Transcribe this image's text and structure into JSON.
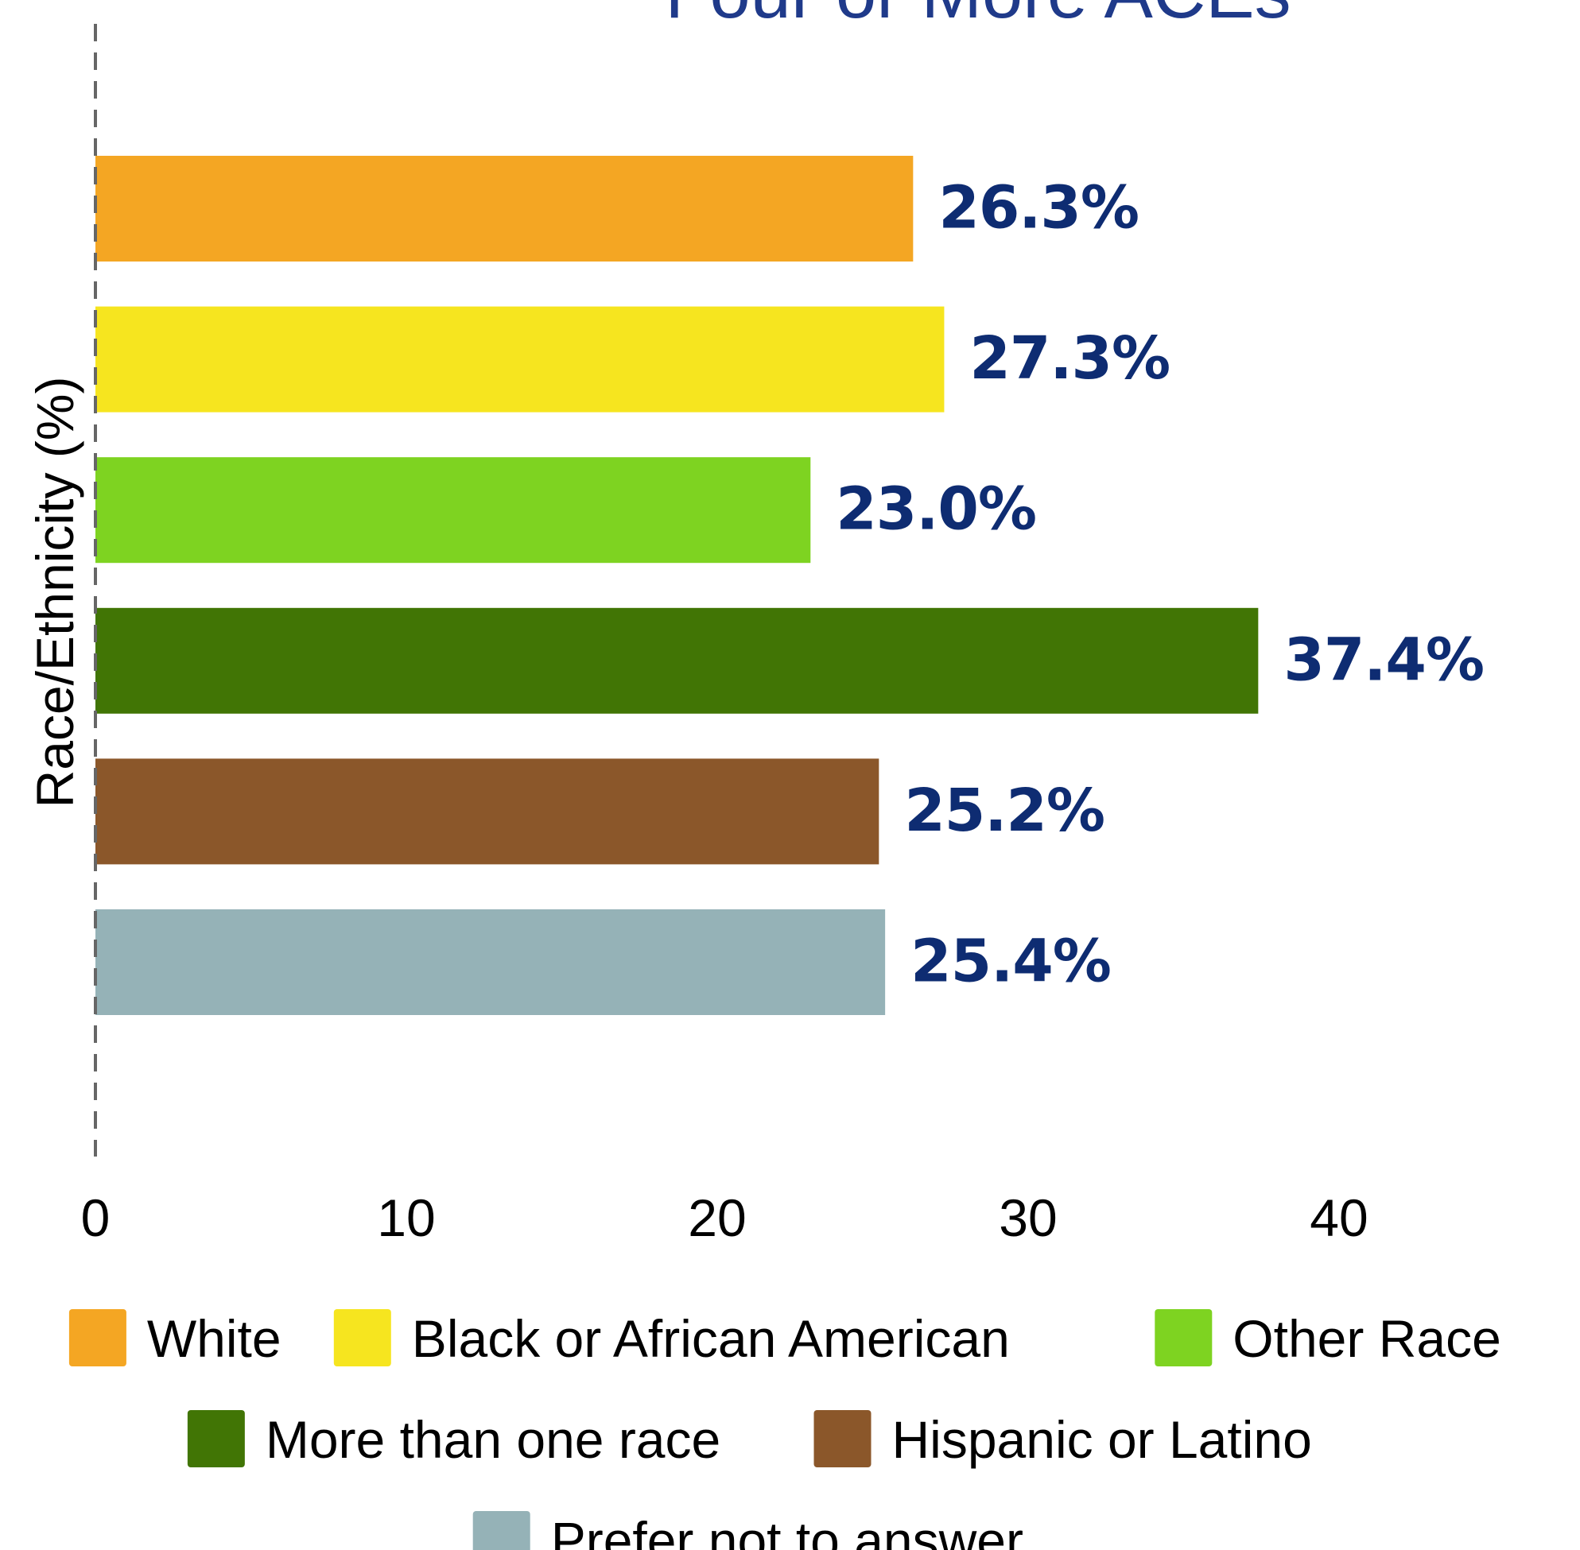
{
  "chart_data": {
    "type": "bar",
    "orientation": "horizontal",
    "title": "Four or More ACEs",
    "ylabel": "Race/Ethnicity (%)",
    "xlabel": "",
    "xlim": [
      0,
      45
    ],
    "xticks": [
      0,
      10,
      20,
      30,
      40
    ],
    "grid": false,
    "legend_position": "bottom",
    "series": [
      {
        "name": "White",
        "value": 26.3,
        "label": "26.3%",
        "color": "#F4A623"
      },
      {
        "name": "Black or African American",
        "value": 27.3,
        "label": "27.3%",
        "color": "#F6E51F"
      },
      {
        "name": "Other Race",
        "value": 23.0,
        "label": "23.0%",
        "color": "#7ED321"
      },
      {
        "name": "More than one race",
        "value": 37.4,
        "label": "37.4%",
        "color": "#417505"
      },
      {
        "name": "Hispanic or Latino",
        "value": 25.2,
        "label": "25.2%",
        "color": "#8B572A"
      },
      {
        "name": "Prefer not to answer",
        "value": 25.4,
        "label": "25.4%",
        "color": "#95B2B7"
      }
    ],
    "colors": {
      "title": "#1F3A8A",
      "value_label": "#0E2C72",
      "axis_text": "#000000",
      "baseline": "#666666"
    }
  }
}
